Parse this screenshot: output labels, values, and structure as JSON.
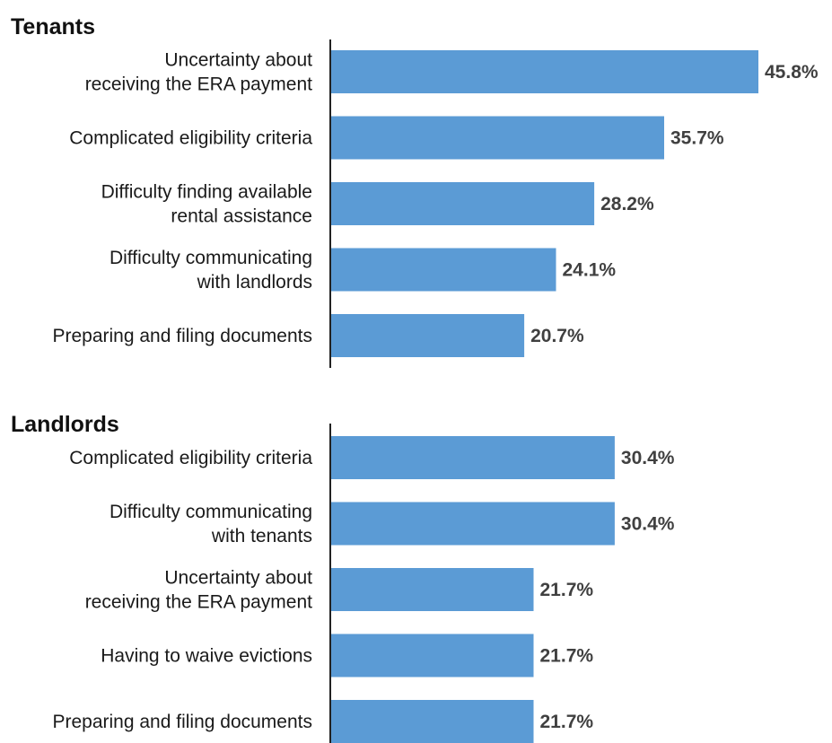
{
  "chart_data": [
    {
      "type": "bar",
      "orientation": "horizontal",
      "title": "Tenants",
      "categories": [
        [
          "Uncertainty about",
          "receiving the ERA payment"
        ],
        [
          "Complicated eligibility criteria"
        ],
        [
          "Difficulty finding available",
          "rental assistance"
        ],
        [
          "Difficulty communicating",
          "with landlords"
        ],
        [
          "Preparing and filing documents"
        ]
      ],
      "values": [
        45.8,
        35.7,
        28.2,
        24.1,
        20.7
      ],
      "value_labels": [
        "45.8%",
        "35.7%",
        "28.2%",
        "24.1%",
        "20.7%"
      ],
      "xlim": [
        0,
        50
      ],
      "grid": false,
      "legend": "none",
      "bar_color": "#5b9bd5"
    },
    {
      "type": "bar",
      "orientation": "horizontal",
      "title": "Landlords",
      "categories": [
        [
          "Complicated eligibility criteria"
        ],
        [
          "Difficulty communicating",
          "with tenants"
        ],
        [
          "Uncertainty about",
          "receiving the ERA payment"
        ],
        [
          "Having to waive evictions"
        ],
        [
          "Preparing and filing documents"
        ]
      ],
      "values": [
        30.4,
        30.4,
        21.7,
        21.7,
        21.7
      ],
      "value_labels": [
        "30.4%",
        "30.4%",
        "21.7%",
        "21.7%",
        "21.7%"
      ],
      "xlim": [
        0,
        50
      ],
      "grid": false,
      "legend": "none",
      "bar_color": "#5b9bd5"
    }
  ]
}
